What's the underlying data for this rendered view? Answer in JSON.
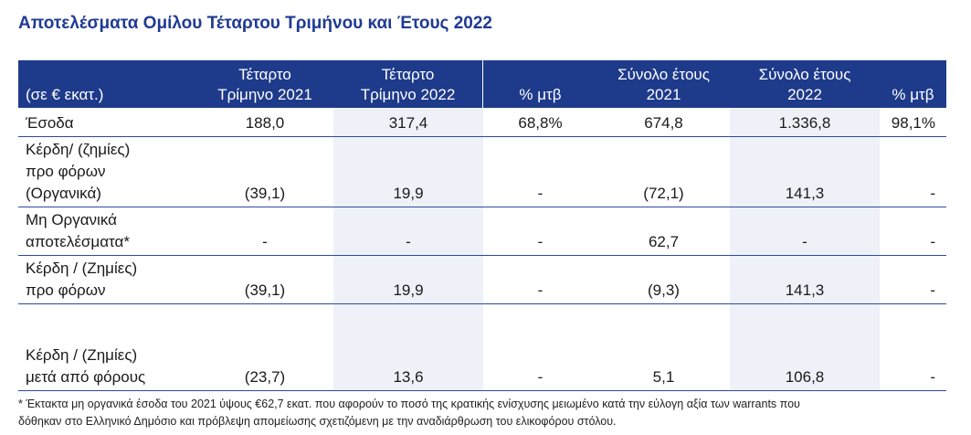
{
  "title": "Αποτελέσματα Ομίλου Τέταρτου Τριμήνου και Έτους 2022",
  "header": {
    "col0": "(σε € εκατ.)",
    "col1_line1": "Τέταρτο",
    "col1_line2": "Τρίμηνο 2021",
    "col2_line1": "Τέταρτο",
    "col2_line2": "Τρίμηνο 2022",
    "col3": "% μτβ",
    "col4_line1": "Σύνολο έτους",
    "col4_line2": "2021",
    "col5_line1": "Σύνολο έτους",
    "col5_line2": "2022",
    "col6": "% μτβ"
  },
  "rows": [
    {
      "label_lines": [
        "Έσοδα"
      ],
      "values": [
        "188,0",
        "317,4",
        "68,8%",
        "674,8",
        "1.336,8",
        "98,1%"
      ]
    },
    {
      "label_lines": [
        "Κέρδη/ (ζημίες)",
        "προ φόρων",
        "(Οργανικά)"
      ],
      "values": [
        "(39,1)",
        "19,9",
        "-",
        "(72,1)",
        "141,3",
        "-"
      ]
    },
    {
      "label_lines": [
        "Μη Οργανικά",
        "αποτελέσματα*"
      ],
      "values": [
        "-",
        "-",
        "-",
        "62,7",
        "-",
        "-"
      ]
    },
    {
      "label_lines": [
        "Κέρδη / (Ζημίες)",
        "προ φόρων"
      ],
      "values": [
        "(39,1)",
        "19,9",
        "-",
        "(9,3)",
        "141,3",
        "-"
      ]
    },
    {
      "label_lines": [
        "",
        "Κέρδη / (Ζημίες)",
        "μετά από φόρους"
      ],
      "values": [
        "(23,7)",
        "13,6",
        "-",
        "5,1",
        "106,8",
        "-"
      ]
    }
  ],
  "footnote_line1": "* Έκτακτα μη οργανικά έσοδα του 2021 ύψους €62,7 εκατ. που αφορούν το ποσό της κρατικής ενίσχυσης μειωμένο κατά την εύλογη αξία των warrants που",
  "footnote_line2": "δόθηκαν στο Ελληνικό Δημόσιο και πρόβλεψη απομείωσης σχετιζόμενη με την αναδιάρθρωση του ελικοφόρου στόλου."
}
